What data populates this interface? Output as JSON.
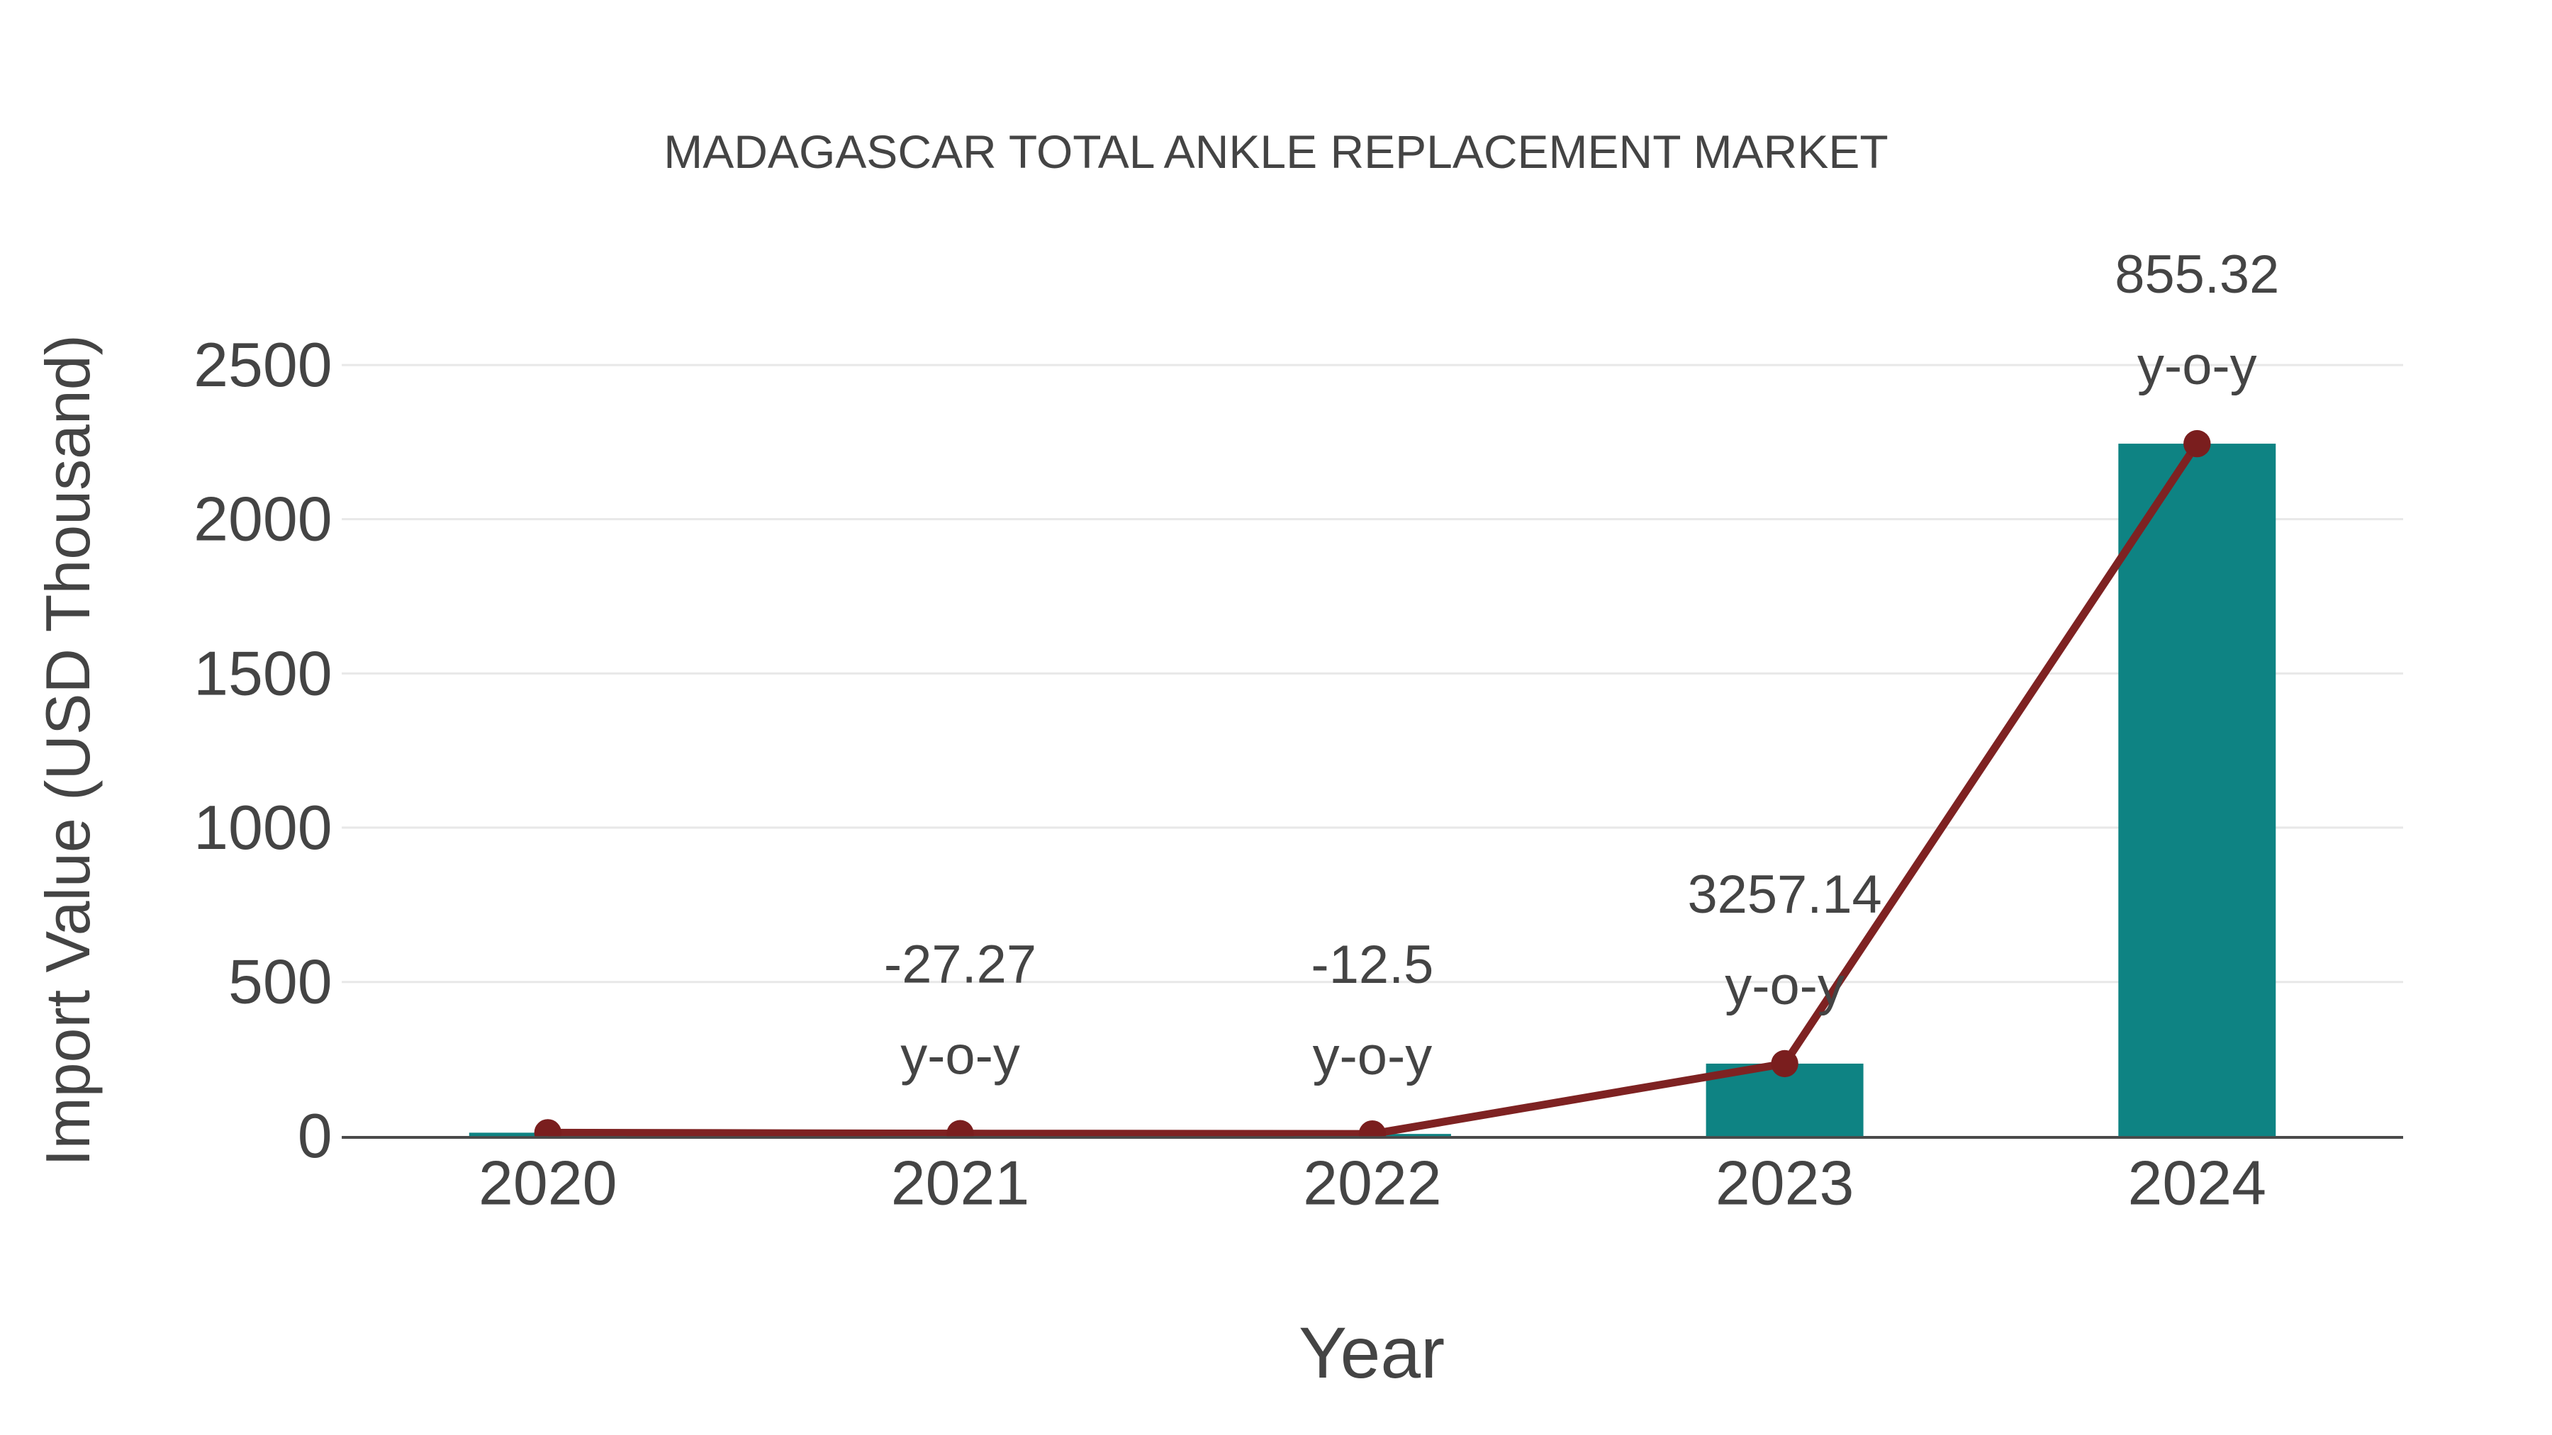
{
  "page": {
    "background": "#ffffff"
  },
  "chart_data": {
    "type": "bar",
    "subtype": "bar-with-line-overlay",
    "title": "MADAGASCAR TOTAL ANKLE REPLACEMENT MARKET",
    "xlabel": "Year",
    "ylabel": "Import Value (USD Thousand)",
    "categories": [
      "2020",
      "2021",
      "2022",
      "2023",
      "2024"
    ],
    "series": [
      {
        "name": "Import Value (USD Thousand)",
        "type": "bar",
        "values": [
          11,
          8,
          7,
          235,
          2245
        ],
        "color": "#0E8383"
      },
      {
        "name": "Import Value trend",
        "type": "line",
        "values": [
          11,
          8,
          7,
          235,
          2245
        ],
        "color": "#7E2222",
        "marker_color": "#7A1E1E"
      }
    ],
    "annotations": [
      {
        "category": "2021",
        "line1": "-27.27",
        "line2": "y-o-y"
      },
      {
        "category": "2022",
        "line1": "-12.5",
        "line2": "y-o-y"
      },
      {
        "category": "2023",
        "line1": "3257.14",
        "line2": "y-o-y"
      },
      {
        "category": "2024",
        "line1": "855.32",
        "line2": "y-o-y"
      }
    ],
    "yticks": [
      0,
      500,
      1000,
      1500,
      2000,
      2500
    ],
    "ylim": [
      0,
      2500
    ],
    "grid": "horizontal",
    "legend_position": "none",
    "colors": {
      "grid": "#E8E8E8",
      "axis_line": "#4A4A4A",
      "text": "#444444"
    }
  }
}
